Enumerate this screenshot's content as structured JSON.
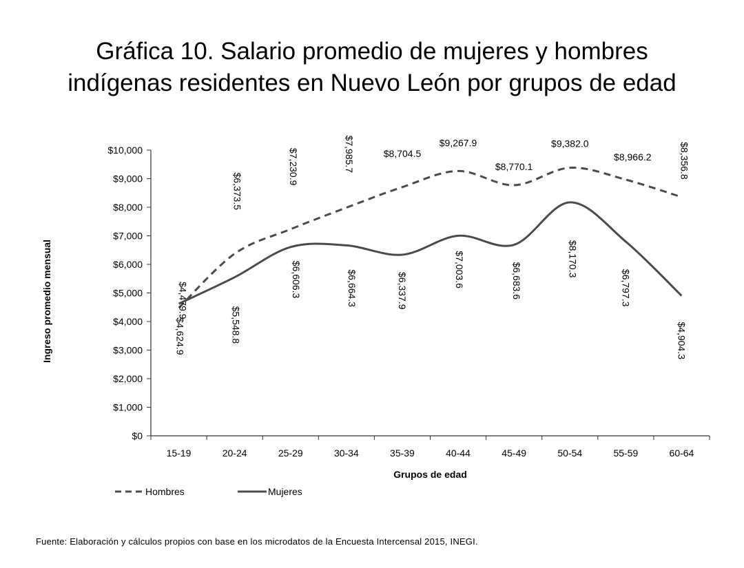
{
  "title": {
    "line1": "Gráfica 10. Salario promedio de mujeres y hombres",
    "line2": "indígenas residentes en Nuevo León por grupos de edad"
  },
  "source": "Fuente: Elaboración y cálculos propios con base en los microdatos de la Encuesta Intercensal 2015, INEGI.",
  "chart_data": {
    "type": "line",
    "title": "Gráfica 10. Salario promedio de mujeres y hombres indígenas residentes en Nuevo León por grupos de edad",
    "xlabel": "Grupos de edad",
    "ylabel": "Ingreso promedio mensual",
    "ylim": [
      0,
      10000
    ],
    "yticks": [
      0,
      1000,
      2000,
      3000,
      4000,
      5000,
      6000,
      7000,
      8000,
      9000,
      10000
    ],
    "ytick_labels": [
      "$0",
      "$1,000",
      "$2,000",
      "$3,000",
      "$4,000",
      "$5,000",
      "$6,000",
      "$7,000",
      "$8,000",
      "$9,000",
      "$10,000"
    ],
    "categories": [
      "15-19",
      "20-24",
      "25-29",
      "30-34",
      "35-39",
      "40-44",
      "45-49",
      "50-54",
      "55-59",
      "60-64"
    ],
    "series": [
      {
        "name": "Hombres",
        "line_style": "dashed",
        "values": [
          4479.9,
          6373.5,
          7230.9,
          7985.7,
          8704.5,
          9267.9,
          8770.1,
          9382.0,
          8966.2,
          8356.8
        ],
        "labels": [
          "$4,479.9",
          "$6,373.5",
          "$7,230.9",
          "$7,985.7",
          "$8,704.5",
          "$9,267.9",
          "$8,770.1",
          "$9,382.0",
          "$8,966.2",
          "$8,356.8"
        ]
      },
      {
        "name": "Mujeres",
        "line_style": "solid",
        "values": [
          4624.9,
          5548.8,
          6606.3,
          6664.3,
          6337.9,
          7003.6,
          6683.6,
          8170.3,
          6797.3,
          4904.3
        ],
        "labels": [
          "$4,624.9",
          "$5,548.8",
          "$6,606.3",
          "$6,664.3",
          "$6,337.9",
          "$7,003.6",
          "$6,683.6",
          "$8,170.3",
          "$6,797.3",
          "$4,904.3"
        ]
      }
    ],
    "grid": false,
    "legend": "bottom-left",
    "line_color": "#4a4a4a"
  }
}
